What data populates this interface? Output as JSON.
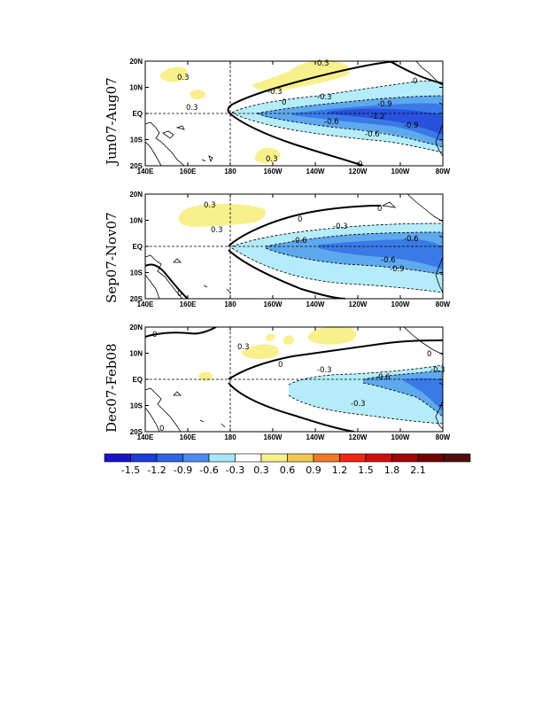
{
  "chart_data": [
    {
      "type": "heatmap",
      "panel_label": "Jun07-Aug07",
      "xticks": [
        "140E",
        "160E",
        "180",
        "160W",
        "140W",
        "120W",
        "100W",
        "80W"
      ],
      "yticks": [
        "20N",
        "10N",
        "EQ",
        "10S",
        "20S"
      ],
      "xlim": [
        140,
        280
      ],
      "ylim": [
        -20,
        20
      ],
      "contour_labels": [
        "0.3",
        "0.3",
        "-0.3",
        "-0.3",
        "-0.6",
        "-0.9",
        "-1.2",
        "-0.9",
        "-0.6",
        "0",
        "0",
        "0",
        "0.3",
        "0.3"
      ]
    },
    {
      "type": "heatmap",
      "panel_label": "Sep07-Nov07",
      "xticks": [
        "140E",
        "160E",
        "180",
        "160W",
        "140W",
        "120W",
        "100W",
        "80W"
      ],
      "yticks": [
        "20N",
        "10N",
        "EQ",
        "10S",
        "20S"
      ],
      "xlim": [
        140,
        280
      ],
      "ylim": [
        -20,
        20
      ],
      "contour_labels": [
        "0.3",
        "0.3",
        "0",
        "-0.3",
        "-0.6",
        "-0.6",
        "-0.6",
        "-0.9",
        "0",
        "0"
      ]
    },
    {
      "type": "heatmap",
      "panel_label": "Dec07-Feb08",
      "xticks": [
        "140E",
        "160E",
        "180",
        "160W",
        "140W",
        "120W",
        "100W",
        "80W"
      ],
      "yticks": [
        "20N",
        "10N",
        "EQ",
        "10S",
        "20S"
      ],
      "xlim": [
        140,
        280
      ],
      "ylim": [
        -20,
        20
      ],
      "contour_labels": [
        "0",
        "0.3",
        "0",
        "-0.3",
        "-0.6",
        "-0.3",
        "-0.3",
        "0",
        "0"
      ]
    }
  ],
  "colorbar": {
    "labels": [
      "-1.5",
      "-1.2",
      "-0.9",
      "-0.6",
      "-0.3",
      "0.3",
      "0.6",
      "0.9",
      "1.2",
      "1.5",
      "1.8",
      "2.1"
    ],
    "colors": [
      "#1a14c8",
      "#1e3cd8",
      "#2e64e6",
      "#4a8df0",
      "#a8e6f8",
      "#ffffff",
      "#f8f08c",
      "#f0c850",
      "#f07828",
      "#f02814",
      "#d01010",
      "#a00808",
      "#700404",
      "#501010"
    ]
  },
  "colors": {
    "neg_0_3": "#b4ecfa",
    "neg_0_6": "#5ea8ee",
    "neg_0_9": "#3a7ae6",
    "neg_1_2": "#2852dc",
    "pos_0_3": "#f8f08c",
    "land": "#000000"
  }
}
